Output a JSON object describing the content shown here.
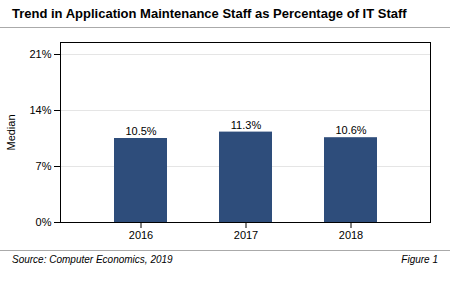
{
  "chart_data": {
    "type": "bar",
    "title": "Trend in Application Maintenance Staff as Percentage of IT Staff",
    "annotations": [
      "Source: Computer Economics, 2019",
      "Figure 1"
    ],
    "categories": [
      "2016",
      "2017",
      "2018"
    ],
    "values": [
      10.5,
      11.3,
      10.6
    ],
    "value_labels": [
      "10.5%",
      "11.3%",
      "10.6%"
    ],
    "data_labels": true,
    "color": "#2E4D7B",
    "ylabel": "Median",
    "ylim": [
      0,
      22.5
    ],
    "yticks": [
      {
        "value": 0,
        "label": "0%"
      },
      {
        "value": 7,
        "label": "7%"
      },
      {
        "value": 14,
        "label": "14%"
      },
      {
        "value": 21,
        "label": "21%"
      }
    ],
    "grid": true
  }
}
